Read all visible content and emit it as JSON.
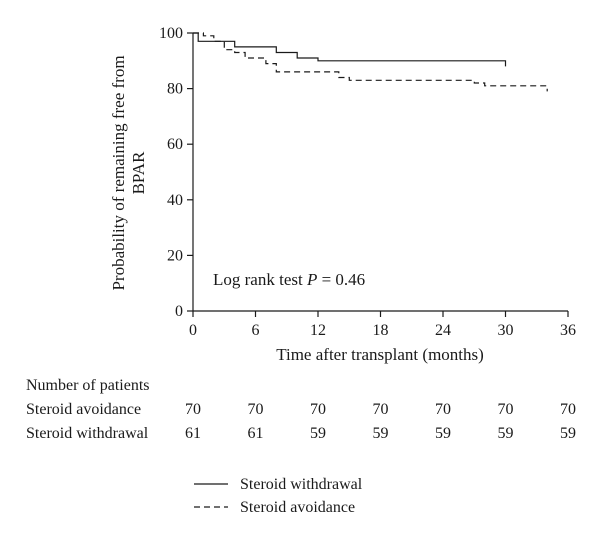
{
  "chart_data": {
    "type": "line",
    "ylabel_lines": [
      "Probability of remaining free from",
      "BPAR"
    ],
    "xlabel": "Time after transplant (months)",
    "xlim": [
      0,
      36
    ],
    "ylim": [
      0,
      100
    ],
    "x_ticks": [
      0,
      6,
      12,
      18,
      24,
      30,
      36
    ],
    "y_ticks": [
      0,
      20,
      40,
      60,
      80,
      100
    ],
    "annotation": {
      "prefix": "Log rank test ",
      "p_label": "P",
      "suffix": " = 0.46"
    },
    "legend_position": "bottom",
    "series": [
      {
        "name": "Steroid withdrawal",
        "style": "solid",
        "points": [
          [
            0,
            100
          ],
          [
            0.5,
            100
          ],
          [
            0.5,
            97
          ],
          [
            4,
            97
          ],
          [
            4,
            95
          ],
          [
            8,
            95
          ],
          [
            8,
            93
          ],
          [
            10,
            93
          ],
          [
            10,
            91
          ],
          [
            12,
            91
          ],
          [
            12,
            90
          ],
          [
            30,
            90
          ],
          [
            30,
            88
          ]
        ]
      },
      {
        "name": "Steroid avoidance",
        "style": "dashed",
        "points": [
          [
            0,
            100
          ],
          [
            1,
            100
          ],
          [
            1,
            99
          ],
          [
            2,
            99
          ],
          [
            2,
            97
          ],
          [
            3,
            97
          ],
          [
            3,
            94
          ],
          [
            4,
            94
          ],
          [
            4,
            93
          ],
          [
            5,
            93
          ],
          [
            5,
            91
          ],
          [
            7,
            91
          ],
          [
            7,
            89
          ],
          [
            8,
            89
          ],
          [
            8,
            86
          ],
          [
            14,
            86
          ],
          [
            14,
            84
          ],
          [
            15,
            84
          ],
          [
            15,
            83
          ],
          [
            27,
            83
          ],
          [
            27,
            82
          ],
          [
            28,
            82
          ],
          [
            28,
            81
          ],
          [
            34,
            81
          ],
          [
            34,
            79
          ]
        ]
      }
    ]
  },
  "risk_table": {
    "title": "Number of patients",
    "rows": [
      {
        "label": "Steroid avoidance",
        "values": [
          "70",
          "70",
          "70",
          "70",
          "70",
          "70",
          "70"
        ]
      },
      {
        "label": "Steroid withdrawal",
        "values": [
          "61",
          "61",
          "59",
          "59",
          "59",
          "59",
          "59"
        ]
      }
    ]
  },
  "legend": [
    {
      "label": "Steroid withdrawal",
      "style": "solid"
    },
    {
      "label": "Steroid avoidance",
      "style": "dashed"
    }
  ],
  "colors": {
    "ink": "#1a1a1a",
    "background": "#ffffff"
  }
}
